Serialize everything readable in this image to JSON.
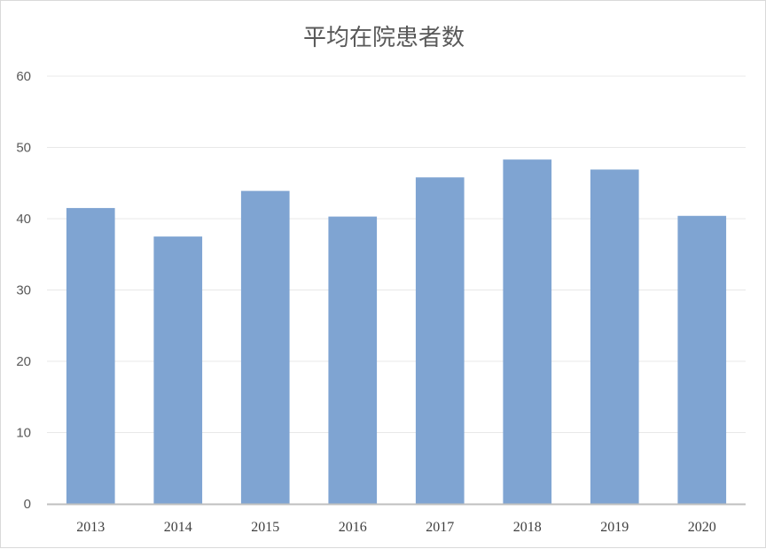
{
  "chart_data": {
    "type": "bar",
    "title": "平均在院患者数",
    "categories": [
      "2013",
      "2014",
      "2015",
      "2016",
      "2017",
      "2018",
      "2019",
      "2020"
    ],
    "values": [
      41.5,
      37.5,
      43.9,
      40.3,
      45.8,
      48.3,
      46.9,
      40.4
    ],
    "ylim": [
      0,
      60
    ],
    "yticks": [
      0,
      10,
      20,
      30,
      40,
      50,
      60
    ],
    "grid": true,
    "legend": "none",
    "bar_color": "#7fa4d2",
    "grid_color": "#e8e8e8",
    "axis_color": "#bfbfbf"
  }
}
